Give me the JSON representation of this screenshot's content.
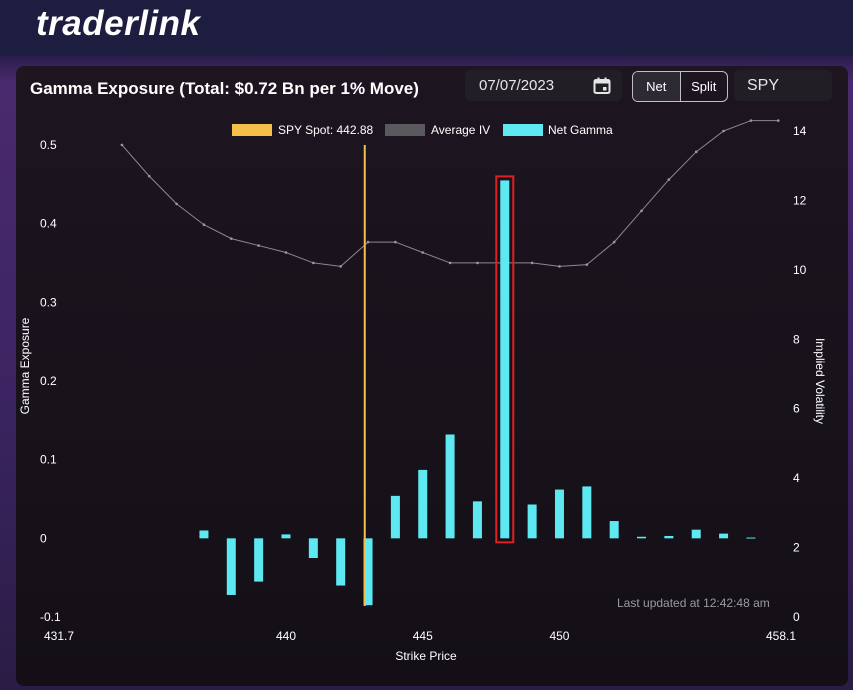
{
  "brand": {
    "logo_text": "traderlink"
  },
  "panel": {
    "title": "Gamma Exposure (Total: $0.72 Bn per 1% Move)",
    "date_value": "07/07/2023",
    "toggle": [
      {
        "label": "Net",
        "active": true
      },
      {
        "label": "Split",
        "active": false
      }
    ],
    "symbol_value": "SPY",
    "last_updated": "Last updated at 12:42:48 am",
    "icons": {
      "calendar": "calendar-icon"
    }
  },
  "colors": {
    "gamma": "#5ee8f2",
    "spot": "#f5c04a",
    "iv": "#8a8a8e",
    "highlight": "#e02020"
  },
  "chart_data": {
    "type": "bar",
    "title": "",
    "xlabel": "Strike Price",
    "ylabel": "Gamma Exposure",
    "y2label": "Implied Volatility",
    "xlim": [
      431.7,
      458.1
    ],
    "ylim": [
      -0.1,
      0.5
    ],
    "y2lim": [
      0,
      14
    ],
    "x_ticks": [
      "431.7",
      "440",
      "445",
      "450",
      "458.1"
    ],
    "x_tick_values": [
      431.7,
      440,
      445,
      450,
      458.1
    ],
    "y_ticks": [
      "0.5",
      "0.4",
      "0.3",
      "0.2",
      "0.1",
      "0",
      "-0.1"
    ],
    "y_tick_values": [
      0.5,
      0.4,
      0.3,
      0.2,
      0.1,
      0,
      -0.1
    ],
    "y2_ticks": [
      "14",
      "12",
      "10",
      "8",
      "6",
      "4",
      "2",
      "0"
    ],
    "y2_tick_values": [
      14,
      12,
      10,
      8,
      6,
      4,
      2,
      0
    ],
    "legend": [
      {
        "label": "SPY Spot: 442.88",
        "kind": "spot"
      },
      {
        "label": "Average IV",
        "kind": "iv"
      },
      {
        "label": "Net Gamma",
        "kind": "gamma"
      }
    ],
    "legend_position": "top-center",
    "spot": 442.88,
    "highlight_strike": 448,
    "gamma_series": {
      "name": "Net Gamma",
      "x": [
        437,
        438,
        439,
        440,
        441,
        442,
        443,
        444,
        445,
        446,
        447,
        448,
        449,
        450,
        451,
        452,
        453,
        454,
        455,
        456,
        457
      ],
      "values": [
        0.01,
        -0.072,
        -0.055,
        0.005,
        -0.025,
        -0.06,
        -0.085,
        0.054,
        0.087,
        0.132,
        0.047,
        0.455,
        0.043,
        0.062,
        0.066,
        0.022,
        0.002,
        0.003,
        0.011,
        0.006,
        0.001
      ]
    },
    "iv_series": {
      "name": "Average IV",
      "x": [
        434,
        435,
        436,
        437,
        438,
        439,
        440,
        441,
        442,
        443,
        444,
        445,
        446,
        447,
        448,
        449,
        450,
        451,
        452,
        453,
        454,
        455,
        456,
        457,
        458
      ],
      "values": [
        13.6,
        12.7,
        11.9,
        11.3,
        10.9,
        10.7,
        10.5,
        10.2,
        10.1,
        10.8,
        10.8,
        10.5,
        10.2,
        10.2,
        10.2,
        10.2,
        10.1,
        10.15,
        10.8,
        11.7,
        12.6,
        13.4,
        14.0,
        14.3,
        14.3
      ]
    }
  }
}
